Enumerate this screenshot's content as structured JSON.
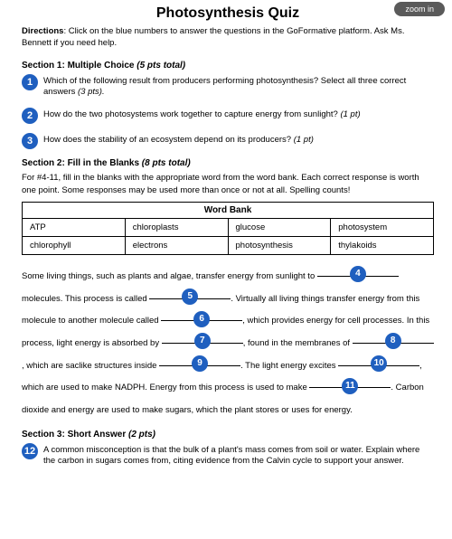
{
  "zoom_label": "zoom in",
  "title": "Photosynthesis Quiz",
  "directions_label": "Directions",
  "directions_text": ": Click on the blue numbers to answer the questions in the GoFormative platform. Ask Ms. Bennett if you need help.",
  "section1": {
    "heading_bold": "Section 1: Multiple Choice",
    "heading_italic": " (5 pts total)",
    "q1_num": "1",
    "q1_text": "Which of the following result from producers performing photosynthesis? Select all three correct answers ",
    "q1_pts": "(3 pts).",
    "q2_num": "2",
    "q2_text": "How do the two photosystems work together to capture energy from sunlight? ",
    "q2_pts": "(1 pt)",
    "q3_num": "3",
    "q3_text": "How does the stability of an ecosystem depend on its producers? ",
    "q3_pts": "(1 pt)"
  },
  "section2": {
    "heading_bold": "Section 2: Fill in the Blanks",
    "heading_italic": " (8 pts total)",
    "intro": "For #4-11, fill in the blanks with the appropriate word from the word bank. Each correct response is worth one point. Some responses may be used more than once or not at all. Spelling counts!",
    "wordbank_title": "Word Bank",
    "wordbank_rows": [
      [
        "ATP",
        "chloroplasts",
        "glucose",
        "photosystem"
      ],
      [
        "chlorophyll",
        "electrons",
        "photosynthesis",
        "thylakoids"
      ]
    ],
    "t_pre4": "Some living things, such as plants and algae, transfer energy from sunlight to ",
    "n4": "4",
    "t_post4": " molecules. This process is called ",
    "n5": "5",
    "t_post5": ". Virtually all living things transfer energy from this molecule to another molecule called ",
    "n6": "6",
    "t_post6": ", which provides energy for cell processes. In this process, light energy is absorbed by ",
    "n7": "7",
    "t_post7": ", found in the membranes of ",
    "n8": "8",
    "t_post8": ", which are saclike structures inside ",
    "n9": "9",
    "t_post9": ". The light energy excites ",
    "n10": "10",
    "t_post10": ", which are used to make NADPH. Energy from this process is used to make ",
    "n11": "11",
    "t_post11": ". Carbon dioxide and energy are used to make sugars, which the plant stores or uses for energy."
  },
  "section3": {
    "heading_bold": "Section 3: Short Answer",
    "heading_italic": " (2 pts)",
    "q12_num": "12",
    "q12_text": "A common misconception is that the bulk of a plant's mass comes from soil or water. Explain where the carbon in sugars comes from, citing evidence from the Calvin cycle to support your answer."
  },
  "colors": {
    "badge": "#1f5fbf",
    "text": "#000000",
    "background": "#ffffff"
  }
}
